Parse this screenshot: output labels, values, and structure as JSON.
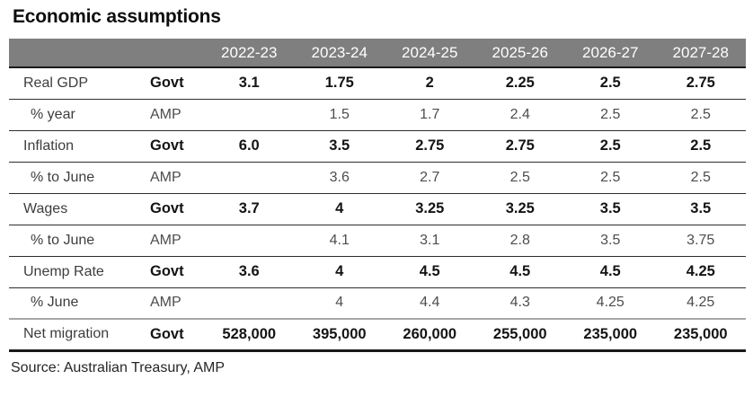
{
  "title": "Economic assumptions",
  "source_note": "Source: Australian Treasury, AMP",
  "colors": {
    "header_bg": "#7f7f7f",
    "header_text": "#ffffff",
    "rule_dark": "#1a1a1a",
    "rule_light": "#a6a6a6"
  },
  "chart_data": {
    "type": "table",
    "title": "Economic assumptions",
    "columns": [
      "2022-23",
      "2023-24",
      "2024-25",
      "2025-26",
      "2026-27",
      "2027-28"
    ],
    "rows": [
      {
        "label": "Real GDP",
        "source": "Govt",
        "style": "govt",
        "values": [
          "3.1",
          "1.75",
          "2",
          "2.25",
          "2.5",
          "2.75"
        ]
      },
      {
        "label": "% year",
        "source": "AMP",
        "style": "amp",
        "values": [
          "",
          "1.5",
          "1.7",
          "2.4",
          "2.5",
          "2.5"
        ]
      },
      {
        "label": "Inflation",
        "source": "Govt",
        "style": "govt",
        "values": [
          "6.0",
          "3.5",
          "2.75",
          "2.75",
          "2.5",
          "2.5"
        ]
      },
      {
        "label": "% to June",
        "source": "AMP",
        "style": "amp",
        "values": [
          "",
          "3.6",
          "2.7",
          "2.5",
          "2.5",
          "2.5"
        ]
      },
      {
        "label": "Wages",
        "source": "Govt",
        "style": "govt",
        "values": [
          "3.7",
          "4",
          "3.25",
          "3.25",
          "3.5",
          "3.5"
        ]
      },
      {
        "label": "% to June",
        "source": "AMP",
        "style": "amp",
        "values": [
          "",
          "4.1",
          "3.1",
          "2.8",
          "3.5",
          "3.75"
        ]
      },
      {
        "label": "Unemp Rate",
        "source": "Govt",
        "style": "govt",
        "values": [
          "3.6",
          "4",
          "4.5",
          "4.5",
          "4.5",
          "4.25"
        ]
      },
      {
        "label": "% June",
        "source": "AMP",
        "style": "amp",
        "values": [
          "",
          "4",
          "4.4",
          "4.3",
          "4.25",
          "4.25"
        ]
      },
      {
        "label": "Net migration",
        "source": "Govt",
        "style": "govt",
        "values": [
          "528,000",
          "395,000",
          "260,000",
          "255,000",
          "235,000",
          "235,000"
        ]
      }
    ],
    "source": "Source: Australian Treasury, AMP",
    "layout": {
      "grid": "horizontal-rules-only",
      "legend": "none"
    }
  }
}
